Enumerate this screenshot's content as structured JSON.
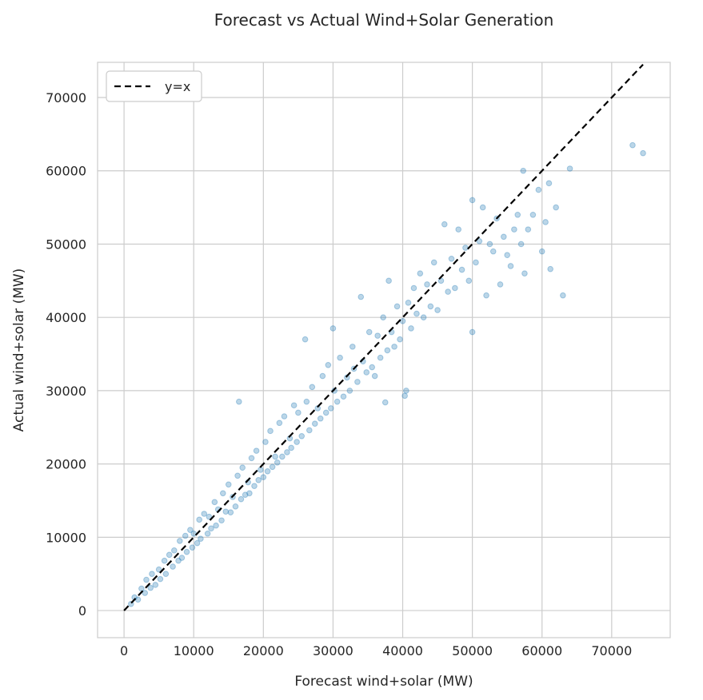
{
  "chart_data": {
    "type": "scatter",
    "title": "Forecast vs Actual Wind+Solar Generation",
    "xlabel": "Forecast wind+solar (MW)",
    "ylabel": "Actual wind+solar (MW)",
    "xlim": [
      -3800,
      78400
    ],
    "ylim": [
      -3700,
      74800
    ],
    "xticks": [
      0,
      10000,
      20000,
      30000,
      40000,
      50000,
      60000,
      70000
    ],
    "yticks": [
      0,
      10000,
      20000,
      30000,
      40000,
      50000,
      60000,
      70000
    ],
    "grid": true,
    "legend": {
      "position": "top-left",
      "entries": [
        "y=x"
      ]
    },
    "colors": {
      "points": "#1f77b4",
      "reference_line": "#000000",
      "grid": "#cccccc"
    },
    "series": [
      {
        "type": "scatter",
        "points": [
          [
            1000,
            900
          ],
          [
            1500,
            1800
          ],
          [
            2000,
            1500
          ],
          [
            2500,
            3000
          ],
          [
            3000,
            2400
          ],
          [
            3200,
            4200
          ],
          [
            3800,
            3100
          ],
          [
            4000,
            5000
          ],
          [
            4500,
            3500
          ],
          [
            5000,
            5600
          ],
          [
            5200,
            4300
          ],
          [
            5800,
            6800
          ],
          [
            6000,
            5000
          ],
          [
            6500,
            7600
          ],
          [
            7000,
            6000
          ],
          [
            7200,
            8200
          ],
          [
            7800,
            6800
          ],
          [
            8000,
            9500
          ],
          [
            8300,
            7200
          ],
          [
            8800,
            10200
          ],
          [
            9000,
            8000
          ],
          [
            9500,
            11000
          ],
          [
            9800,
            8600
          ],
          [
            10000,
            10500
          ],
          [
            10500,
            9200
          ],
          [
            10800,
            12400
          ],
          [
            11000,
            9800
          ],
          [
            11500,
            13200
          ],
          [
            12000,
            10500
          ],
          [
            12200,
            12800
          ],
          [
            12500,
            11200
          ],
          [
            13000,
            14800
          ],
          [
            13200,
            11600
          ],
          [
            13500,
            13800
          ],
          [
            14000,
            12300
          ],
          [
            14200,
            16000
          ],
          [
            14600,
            13500
          ],
          [
            15000,
            17200
          ],
          [
            15300,
            13400
          ],
          [
            15600,
            15500
          ],
          [
            16000,
            14200
          ],
          [
            16300,
            18400
          ],
          [
            16500,
            28500
          ],
          [
            16800,
            15200
          ],
          [
            17000,
            19500
          ],
          [
            17400,
            15800
          ],
          [
            17800,
            17500
          ],
          [
            18000,
            16000
          ],
          [
            18300,
            20800
          ],
          [
            18700,
            17000
          ],
          [
            19000,
            21800
          ],
          [
            19300,
            17800
          ],
          [
            19600,
            19200
          ],
          [
            20000,
            18200
          ],
          [
            20300,
            23000
          ],
          [
            20600,
            19000
          ],
          [
            21000,
            24500
          ],
          [
            21300,
            19600
          ],
          [
            21700,
            21000
          ],
          [
            22000,
            20200
          ],
          [
            22300,
            25600
          ],
          [
            22700,
            21000
          ],
          [
            23000,
            26500
          ],
          [
            23400,
            21600
          ],
          [
            23800,
            23500
          ],
          [
            24000,
            22200
          ],
          [
            24400,
            28000
          ],
          [
            24800,
            23000
          ],
          [
            25000,
            27000
          ],
          [
            25500,
            23800
          ],
          [
            26000,
            37000
          ],
          [
            26200,
            28500
          ],
          [
            26600,
            24600
          ],
          [
            27000,
            30500
          ],
          [
            27400,
            25500
          ],
          [
            27800,
            27600
          ],
          [
            28200,
            26200
          ],
          [
            28500,
            32000
          ],
          [
            29000,
            27000
          ],
          [
            29300,
            33500
          ],
          [
            29700,
            27600
          ],
          [
            30000,
            38500
          ],
          [
            30200,
            30000
          ],
          [
            30600,
            28500
          ],
          [
            31000,
            34500
          ],
          [
            31500,
            29200
          ],
          [
            32000,
            31800
          ],
          [
            32400,
            30000
          ],
          [
            32800,
            36000
          ],
          [
            33000,
            33000
          ],
          [
            33500,
            31200
          ],
          [
            34000,
            42800
          ],
          [
            34300,
            34000
          ],
          [
            34800,
            32500
          ],
          [
            35200,
            38000
          ],
          [
            35600,
            33200
          ],
          [
            36000,
            32000
          ],
          [
            36400,
            37500
          ],
          [
            36800,
            34500
          ],
          [
            37200,
            40000
          ],
          [
            37500,
            28400
          ],
          [
            37800,
            35500
          ],
          [
            38000,
            45000
          ],
          [
            38400,
            38000
          ],
          [
            38800,
            36000
          ],
          [
            39200,
            41500
          ],
          [
            39600,
            37000
          ],
          [
            40000,
            39500
          ],
          [
            40300,
            29300
          ],
          [
            40500,
            30000
          ],
          [
            40800,
            42000
          ],
          [
            41200,
            38500
          ],
          [
            41600,
            44000
          ],
          [
            42000,
            40500
          ],
          [
            42500,
            46000
          ],
          [
            43000,
            40000
          ],
          [
            43500,
            44500
          ],
          [
            44000,
            41500
          ],
          [
            44500,
            47500
          ],
          [
            45000,
            41000
          ],
          [
            45500,
            45000
          ],
          [
            46000,
            52700
          ],
          [
            46500,
            43500
          ],
          [
            47000,
            48000
          ],
          [
            47500,
            44000
          ],
          [
            48000,
            52000
          ],
          [
            48500,
            46500
          ],
          [
            49000,
            49500
          ],
          [
            49500,
            45000
          ],
          [
            50000,
            56000
          ],
          [
            50000,
            38000
          ],
          [
            50500,
            47500
          ],
          [
            51000,
            50400
          ],
          [
            51500,
            55000
          ],
          [
            52000,
            43000
          ],
          [
            52500,
            50000
          ],
          [
            53000,
            49000
          ],
          [
            53500,
            53500
          ],
          [
            54000,
            44500
          ],
          [
            54500,
            51000
          ],
          [
            55000,
            48500
          ],
          [
            55500,
            47000
          ],
          [
            56000,
            52000
          ],
          [
            56500,
            54000
          ],
          [
            57000,
            50000
          ],
          [
            57300,
            60000
          ],
          [
            57500,
            46000
          ],
          [
            58000,
            52000
          ],
          [
            58700,
            54000
          ],
          [
            59500,
            57400
          ],
          [
            60000,
            49000
          ],
          [
            60500,
            53000
          ],
          [
            61000,
            58300
          ],
          [
            61200,
            46600
          ],
          [
            62000,
            55000
          ],
          [
            63000,
            43000
          ],
          [
            64000,
            60300
          ],
          [
            73000,
            63500
          ],
          [
            74500,
            62400
          ]
        ]
      },
      {
        "type": "line",
        "name": "y=x",
        "style": "dashed",
        "points": [
          [
            0,
            0
          ],
          [
            74500,
            74500
          ]
        ]
      }
    ]
  }
}
